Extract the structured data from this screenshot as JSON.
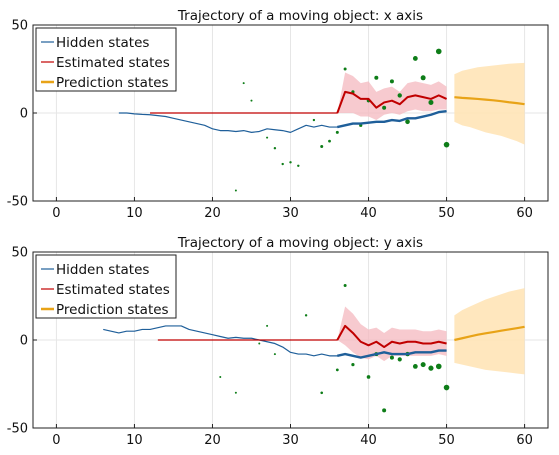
{
  "chart_data": [
    {
      "type": "line",
      "title": "Trajectory of a moving object: x axis",
      "xlabel": "",
      "ylabel": "",
      "xlim": [
        -3,
        63
      ],
      "ylim": [
        -50,
        50
      ],
      "xticks": [
        0,
        10,
        20,
        30,
        40,
        50,
        60
      ],
      "yticks": [
        -50,
        0,
        50
      ],
      "grid": true,
      "legend_position": "top-left",
      "legend": [
        "Hidden states",
        "Estimated states",
        "Prediction states"
      ],
      "colors": {
        "hidden": "#1f5f9a",
        "hidden_faint": "#9cc0dd",
        "estimated": "#c00000",
        "estimated_band": "#f4b8bf",
        "prediction": "#e8a317",
        "prediction_band": "#ffe3b3",
        "observation": "#0e7d18"
      },
      "series": [
        {
          "name": "Hidden states",
          "x": [
            8,
            9,
            10,
            11,
            12,
            13,
            14,
            15,
            16,
            17,
            18,
            19,
            20,
            21,
            22,
            23,
            24,
            25,
            26,
            27,
            28,
            29,
            30,
            31,
            32,
            33,
            34,
            35,
            36,
            37,
            38,
            39,
            40,
            41,
            42,
            43,
            44,
            45,
            46,
            47,
            48,
            49,
            50
          ],
          "values": [
            0,
            0,
            -0.5,
            -0.8,
            -1,
            -1.5,
            -2,
            -3,
            -4,
            -5,
            -6,
            -7,
            -9,
            -10,
            -10,
            -10.5,
            -10,
            -11,
            -10.5,
            -9,
            -9.5,
            -10,
            -11,
            -9,
            -7,
            -8,
            -7,
            -8,
            -8,
            -7,
            -6,
            -6,
            -5.5,
            -5,
            -5,
            -4,
            -4.5,
            -3,
            -3,
            -2,
            -1,
            0.5,
            1
          ]
        },
        {
          "name": "Estimated states",
          "x": [
            12,
            13,
            14,
            15,
            16,
            17,
            18,
            19,
            20,
            21,
            22,
            23,
            24,
            25,
            26,
            27,
            28,
            29,
            30,
            31,
            32,
            33,
            34,
            35,
            36,
            37,
            38,
            39,
            40,
            41,
            42,
            43,
            44,
            45,
            46,
            47,
            48,
            49,
            50
          ],
          "values": [
            0,
            0,
            0,
            0,
            0,
            0,
            0,
            0,
            0,
            0,
            0,
            0,
            0,
            0,
            0,
            0,
            0,
            0,
            0,
            0,
            0,
            0,
            0,
            0,
            0,
            12,
            11,
            8,
            8,
            3,
            6,
            7,
            5,
            9,
            10,
            9,
            8,
            10,
            8
          ],
          "lower": [
            0,
            0,
            0,
            0,
            0,
            0,
            0,
            0,
            0,
            0,
            0,
            0,
            0,
            0,
            0,
            0,
            0,
            0,
            0,
            0,
            0,
            0,
            0,
            0,
            0,
            0,
            0,
            -2,
            -2,
            -4,
            -1,
            0,
            -1,
            1,
            2,
            1,
            1,
            2,
            2
          ],
          "upper": [
            0,
            0,
            0,
            0,
            0,
            0,
            0,
            0,
            0,
            0,
            0,
            0,
            0,
            0,
            0,
            0,
            0,
            0,
            0,
            0,
            0,
            0,
            0,
            0,
            0,
            23,
            21,
            17,
            18,
            12,
            14,
            15,
            12,
            17,
            18,
            17,
            16,
            18,
            15
          ]
        },
        {
          "name": "Prediction states",
          "x": [
            51,
            52,
            53,
            54,
            55,
            56,
            57,
            58,
            59,
            60
          ],
          "values": [
            9,
            8.6,
            8.3,
            8,
            7.6,
            7.2,
            6.7,
            6.1,
            5.6,
            5
          ],
          "lower": [
            -5,
            -7,
            -8,
            -9.5,
            -11,
            -12,
            -13,
            -14.5,
            -16,
            -18
          ],
          "upper": [
            22,
            24,
            25,
            26,
            26.5,
            27,
            27.5,
            28,
            28.3,
            28.5
          ]
        }
      ],
      "observations": {
        "x": [
          23,
          24,
          25,
          27,
          28,
          29,
          30,
          31,
          33,
          34,
          35,
          36,
          37,
          38,
          39,
          40,
          41,
          42,
          43,
          44,
          45,
          46,
          47,
          48,
          49,
          50
        ],
        "values": [
          -44,
          17,
          7,
          -14,
          -20,
          -29,
          -28,
          -30,
          -4,
          -19,
          -16,
          -11,
          25,
          12,
          -7,
          7,
          20,
          3,
          18,
          10,
          -5,
          31,
          20,
          6,
          35,
          -18
        ],
        "sizes": [
          1,
          1,
          1,
          1,
          1.2,
          1.2,
          1.2,
          1.2,
          1.2,
          1.5,
          1.4,
          1.5,
          1.5,
          1.6,
          1.6,
          1.8,
          2.0,
          2.0,
          2.0,
          2.2,
          2.3,
          2.4,
          2.5,
          2.5,
          2.8,
          2.8
        ]
      }
    },
    {
      "type": "line",
      "title": "Trajectory of a moving object: y axis",
      "xlabel": "",
      "ylabel": "",
      "xlim": [
        -3,
        63
      ],
      "ylim": [
        -50,
        50
      ],
      "xticks": [
        0,
        10,
        20,
        30,
        40,
        50,
        60
      ],
      "yticks": [
        -50,
        0,
        50
      ],
      "grid": true,
      "legend_position": "top-left",
      "legend": [
        "Hidden states",
        "Estimated states",
        "Prediction states"
      ],
      "colors": {
        "hidden": "#1f5f9a",
        "hidden_faint": "#9cc0dd",
        "estimated": "#c00000",
        "estimated_band": "#f4b8bf",
        "prediction": "#e8a317",
        "prediction_band": "#ffe3b3",
        "observation": "#0e7d18"
      },
      "series": [
        {
          "name": "Hidden states",
          "x": [
            6,
            7,
            8,
            9,
            10,
            11,
            12,
            13,
            14,
            15,
            16,
            17,
            18,
            19,
            20,
            21,
            22,
            23,
            24,
            25,
            26,
            27,
            28,
            29,
            30,
            31,
            32,
            33,
            34,
            35,
            36,
            37,
            38,
            39,
            40,
            41,
            42,
            43,
            44,
            45,
            46,
            47,
            48,
            49,
            50
          ],
          "values": [
            6,
            5,
            4,
            5,
            5,
            6,
            6,
            7,
            8,
            8,
            8,
            6,
            5,
            4,
            3,
            2,
            1,
            1.5,
            1,
            1,
            0,
            -1,
            -2,
            -4,
            -7,
            -8,
            -8,
            -9,
            -8,
            -9,
            -9,
            -8,
            -9,
            -10,
            -9,
            -8,
            -7,
            -8,
            -8,
            -8,
            -7,
            -7,
            -7,
            -6,
            -6
          ]
        },
        {
          "name": "Estimated states",
          "x": [
            13,
            14,
            15,
            16,
            17,
            18,
            19,
            20,
            21,
            22,
            23,
            24,
            25,
            26,
            27,
            28,
            29,
            30,
            31,
            32,
            33,
            34,
            35,
            36,
            37,
            38,
            39,
            40,
            41,
            42,
            43,
            44,
            45,
            46,
            47,
            48,
            49,
            50
          ],
          "values": [
            0,
            0,
            0,
            0,
            0,
            0,
            0,
            0,
            0,
            0,
            0,
            0,
            0,
            0,
            0,
            0,
            0,
            0,
            0,
            0,
            0,
            0,
            0,
            0,
            8,
            4,
            -1,
            -3,
            -1,
            -4,
            -1,
            -2,
            -1,
            -1,
            -2,
            -2,
            -1,
            -2
          ],
          "lower": [
            0,
            0,
            0,
            0,
            0,
            0,
            0,
            0,
            0,
            0,
            0,
            0,
            0,
            0,
            0,
            0,
            0,
            0,
            0,
            0,
            0,
            0,
            0,
            0,
            -3,
            -7,
            -10,
            -11,
            -9,
            -12,
            -9,
            -9,
            -9,
            -9,
            -9,
            -9,
            -8,
            -9
          ],
          "upper": [
            0,
            0,
            0,
            0,
            0,
            0,
            0,
            0,
            0,
            0,
            0,
            0,
            0,
            0,
            0,
            0,
            0,
            0,
            0,
            0,
            0,
            0,
            0,
            0,
            19,
            15,
            9,
            6,
            7,
            4,
            7,
            6,
            6,
            6,
            5,
            5,
            6,
            5
          ]
        },
        {
          "name": "Prediction states",
          "x": [
            51,
            52,
            53,
            54,
            55,
            56,
            57,
            58,
            59,
            60
          ],
          "values": [
            0,
            1,
            2,
            3,
            3.8,
            4.5,
            5.3,
            6,
            6.7,
            7.5
          ],
          "lower": [
            -13,
            -14,
            -15,
            -16,
            -17,
            -17.5,
            -18,
            -18.5,
            -19,
            -19.5
          ],
          "upper": [
            14,
            17,
            19,
            21,
            23,
            24.5,
            26,
            27.5,
            28.5,
            29.5
          ]
        }
      ],
      "observations": {
        "x": [
          21,
          23,
          26,
          27,
          28,
          32,
          34,
          36,
          37,
          38,
          40,
          41,
          42,
          43,
          44,
          45,
          46,
          47,
          48,
          49,
          50
        ],
        "values": [
          -21,
          -30,
          -2,
          8,
          -8,
          14,
          -30,
          -17,
          31,
          -14,
          -21,
          -8,
          -40,
          -10,
          -11,
          -8,
          -15,
          -14,
          -16,
          -15,
          -27
        ],
        "sizes": [
          1,
          1,
          1,
          1,
          1,
          1.2,
          1.3,
          1.4,
          1.5,
          1.6,
          1.8,
          2.0,
          2.0,
          2.0,
          2.1,
          2.2,
          2.4,
          2.5,
          2.6,
          2.8,
          2.8
        ]
      }
    }
  ]
}
